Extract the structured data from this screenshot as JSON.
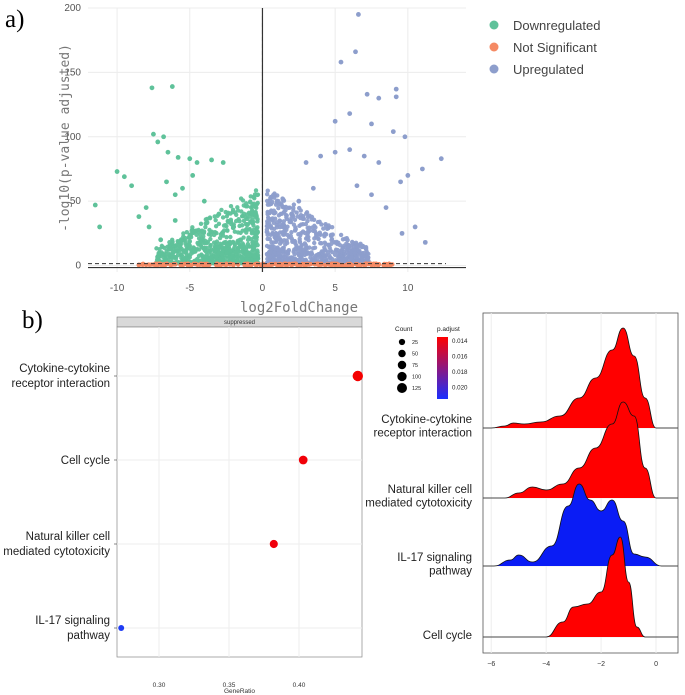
{
  "panel_a_label": "a)",
  "panel_b_label": "b)",
  "chart_data": [
    {
      "type": "scatter",
      "title": "",
      "xlabel": "log2FoldChange",
      "ylabel": "-log10(p-value adjusted)",
      "xlim": [
        -12,
        14
      ],
      "ylim": [
        -5,
        200
      ],
      "xticks": [
        -10,
        -5,
        0,
        5,
        10
      ],
      "yticks": [
        0,
        50,
        100,
        150,
        200
      ],
      "grid": true,
      "legend_position": "top-right",
      "series": [
        {
          "name": "Downregulated",
          "color": "#5fc29a",
          "points": [
            [
              -11.5,
              47
            ],
            [
              -11.2,
              30
            ],
            [
              -10.0,
              73
            ],
            [
              -9.5,
              69
            ],
            [
              -9.0,
              62
            ],
            [
              -7.6,
              138
            ],
            [
              -6.2,
              139
            ],
            [
              -7.5,
              102
            ],
            [
              -6.8,
              100
            ],
            [
              -7.2,
              96
            ],
            [
              -6.5,
              88
            ],
            [
              -5.8,
              84
            ],
            [
              -5.0,
              83
            ],
            [
              -4.5,
              80
            ],
            [
              -3.5,
              82
            ],
            [
              -2.7,
              80
            ],
            [
              -8.0,
              45
            ],
            [
              -8.5,
              38
            ],
            [
              -7.8,
              30
            ],
            [
              -6.0,
              55
            ],
            [
              -5.5,
              60
            ],
            [
              -4.0,
              50
            ],
            [
              -3.0,
              40
            ],
            [
              -2.0,
              30
            ],
            [
              -1.5,
              20
            ],
            [
              -1.0,
              10
            ],
            [
              -4.8,
              70
            ],
            [
              -6.6,
              65
            ],
            [
              -7.0,
              20
            ],
            [
              -6.0,
              35
            ]
          ]
        },
        {
          "name": "Not Significant",
          "color": "#f58a64",
          "points": [
            [
              -8.5,
              0.5
            ],
            [
              -7.0,
              0.8
            ],
            [
              -6.0,
              1.0
            ],
            [
              -5.0,
              0.5
            ],
            [
              -4.0,
              1.0
            ],
            [
              -3.0,
              0.4
            ],
            [
              -2.0,
              0.8
            ],
            [
              -1.0,
              0.5
            ],
            [
              0.0,
              0.3
            ],
            [
              1.0,
              0.6
            ],
            [
              2.0,
              0.9
            ],
            [
              3.0,
              0.5
            ],
            [
              4.0,
              1.0
            ],
            [
              5.0,
              0.6
            ],
            [
              6.0,
              0.8
            ],
            [
              7.0,
              0.5
            ],
            [
              8.0,
              0.9
            ],
            [
              8.8,
              0.4
            ]
          ]
        },
        {
          "name": "Upregulated",
          "color": "#8d9ecc",
          "points": [
            [
              6.6,
              195
            ],
            [
              6.4,
              166
            ],
            [
              5.4,
              158
            ],
            [
              9.2,
              137
            ],
            [
              7.2,
              133
            ],
            [
              8.0,
              130
            ],
            [
              9.2,
              131
            ],
            [
              5.0,
              112
            ],
            [
              7.5,
              110
            ],
            [
              9.0,
              104
            ],
            [
              9.8,
              100
            ],
            [
              6.0,
              118
            ],
            [
              12.3,
              83
            ],
            [
              11.0,
              75
            ],
            [
              10.0,
              70
            ],
            [
              9.5,
              65
            ],
            [
              8.0,
              80
            ],
            [
              7.0,
              85
            ],
            [
              6.0,
              90
            ],
            [
              5.0,
              88
            ],
            [
              4.0,
              85
            ],
            [
              3.0,
              80
            ],
            [
              3.5,
              60
            ],
            [
              2.5,
              50
            ],
            [
              2.0,
              40
            ],
            [
              1.5,
              30
            ],
            [
              1.0,
              20
            ],
            [
              0.5,
              10
            ],
            [
              8.5,
              45
            ],
            [
              9.6,
              25
            ],
            [
              10.5,
              30
            ],
            [
              11.2,
              18
            ],
            [
              7.5,
              55
            ],
            [
              6.5,
              62
            ]
          ]
        }
      ]
    },
    {
      "type": "scatter",
      "title": "",
      "facet_label": "suppressed",
      "xlabel": "GeneRatio",
      "ylabel": "",
      "xlim": [
        0.27,
        0.445
      ],
      "xticks": [
        0.3,
        0.35,
        0.4
      ],
      "categories": [
        "Cytokine-cytokine receptor interaction",
        "Cell cycle",
        "Natural killer cell mediated cytotoxicity",
        "IL-17 signaling pathway"
      ],
      "category_labels": [
        [
          "Cytokine-cytokine",
          "receptor interaction"
        ],
        [
          "Cell cycle"
        ],
        [
          "Natural killer cell",
          "mediated cytotoxicity"
        ],
        [
          "IL-17 signaling",
          "pathway"
        ]
      ],
      "values": [
        0.442,
        0.403,
        0.382,
        0.273
      ],
      "count": [
        125,
        75,
        60,
        20
      ],
      "color": [
        "#f40000",
        "#f10008",
        "#f0000c",
        "#1f3cf4"
      ]
    },
    {
      "type": "area",
      "title": "",
      "xlabel": "",
      "ylabel": "",
      "xlim": [
        -6.3,
        0.8
      ],
      "xticks": [
        -6,
        -4,
        -2,
        0
      ],
      "tick_labels": [
        "−6",
        "−4",
        "−2",
        "0"
      ],
      "grid": true,
      "categories": [
        "Cytokine-cytokine receptor interaction",
        "Natural killer cell mediated cytotoxicity",
        "IL-17 signaling pathway",
        "Cell cycle"
      ],
      "category_labels": [
        [
          "Cytokine-cytokine",
          "receptor interaction"
        ],
        [
          "Natural killer cell",
          "mediated cytotoxicity"
        ],
        [
          "IL-17 signaling",
          "pathway"
        ],
        [
          "Cell cycle"
        ]
      ],
      "series": [
        {
          "name": "Cytokine-cytokine receptor interaction",
          "color": "#ff0000",
          "x": [
            -6.0,
            -5.5,
            -5.2,
            -4.8,
            -4.2,
            -3.5,
            -2.8,
            -2.2,
            -1.6,
            -1.2,
            -0.8,
            -0.4,
            0.0
          ],
          "density": [
            0.0,
            0.02,
            0.05,
            0.04,
            0.06,
            0.12,
            0.3,
            0.5,
            0.78,
            1.0,
            0.72,
            0.3,
            0.0
          ]
        },
        {
          "name": "Natural killer cell mediated cytotoxicity",
          "color": "#ff0000",
          "x": [
            -5.5,
            -5.0,
            -4.5,
            -4.0,
            -3.4,
            -2.8,
            -2.2,
            -1.6,
            -1.2,
            -0.8,
            -0.4,
            0.0
          ],
          "density": [
            0.0,
            0.05,
            0.11,
            0.08,
            0.14,
            0.3,
            0.5,
            0.74,
            0.96,
            0.82,
            0.3,
            0.0
          ]
        },
        {
          "name": "IL-17 signaling pathway",
          "color": "#0a1cf5",
          "x": [
            -5.9,
            -5.3,
            -5.0,
            -4.5,
            -3.8,
            -3.2,
            -2.8,
            -2.4,
            -2.0,
            -1.6,
            -1.2,
            -0.8,
            -0.4,
            0.2
          ],
          "density": [
            0.0,
            0.06,
            0.11,
            0.04,
            0.2,
            0.6,
            0.82,
            0.66,
            0.55,
            0.66,
            0.45,
            0.12,
            0.09,
            0.0
          ]
        },
        {
          "name": "Cell cycle",
          "color": "#ff0000",
          "x": [
            -4.0,
            -3.4,
            -3.0,
            -2.5,
            -2.0,
            -1.6,
            -1.3,
            -1.0,
            -0.7,
            -0.4
          ],
          "density": [
            0.0,
            0.15,
            0.3,
            0.33,
            0.45,
            0.82,
            1.0,
            0.55,
            0.1,
            0.0
          ]
        }
      ],
      "legend": {
        "count_title": "Count",
        "count_values": [
          "25",
          "50",
          "75",
          "100",
          "125"
        ],
        "color_title": "p.adjust",
        "color_ticks": [
          "0.014",
          "0.016",
          "0.018",
          "0.020"
        ],
        "gradient_colors": [
          "#ff0000",
          "#1a2fff"
        ]
      }
    }
  ]
}
